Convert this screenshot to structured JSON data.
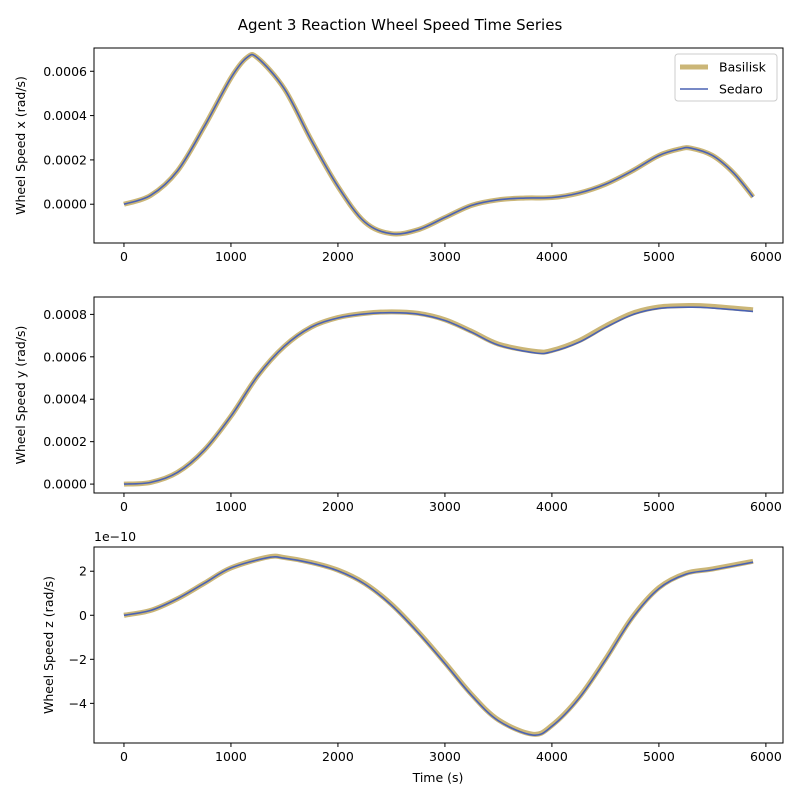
{
  "chart_data": {
    "type": "line",
    "title": "Agent 3 Reaction Wheel Speed Time Series",
    "xlabel": "Time (s)",
    "legend": {
      "placement": "top-right",
      "entries": [
        {
          "name": "Basilisk",
          "color": "#cbb677",
          "style": "thick"
        },
        {
          "name": "Sedaro",
          "color": "#4a62b4",
          "style": "thin"
        }
      ]
    },
    "x_ticks": [
      0,
      1000,
      2000,
      3000,
      4000,
      5000,
      6000
    ],
    "x_tick_labels": [
      "0",
      "1000",
      "2000",
      "3000",
      "4000",
      "5000",
      "6000"
    ],
    "xlim": [
      -280,
      6160
    ],
    "subplots": [
      {
        "ylabel": "Wheel Speed x (rad/s)",
        "ylim": [
          -0.000175,
          0.000705
        ],
        "y_ticks": [
          0,
          0.0002,
          0.0004,
          0.0006
        ],
        "y_tick_labels": [
          "0.0000",
          "0.0002",
          "0.0004",
          "0.0006"
        ],
        "offset_text": "",
        "series": [
          {
            "name": "Basilisk",
            "x": [
              0,
              250,
              500,
              750,
              1000,
              1150,
              1250,
              1500,
              1750,
              2000,
              2250,
              2500,
              2750,
              3000,
              3250,
              3500,
              3750,
              4000,
              4250,
              4500,
              4750,
              5000,
              5200,
              5300,
              5500,
              5700,
              5880
            ],
            "y": [
              0.0,
              4e-05,
              0.00015,
              0.00035,
              0.00057,
              0.000662,
              0.00066,
              0.00052,
              0.00029,
              8e-05,
              -8e-05,
              -0.000133,
              -0.000115,
              -6e-05,
              -5e-06,
              2e-05,
              2.8e-05,
              3e-05,
              5e-05,
              9e-05,
              0.00015,
              0.00022,
              0.00025,
              0.000253,
              0.00022,
              0.00014,
              3.3e-05
            ]
          },
          {
            "name": "Sedaro",
            "x": [
              0,
              250,
              500,
              750,
              1000,
              1150,
              1250,
              1500,
              1750,
              2000,
              2250,
              2500,
              2750,
              3000,
              3250,
              3500,
              3750,
              4000,
              4250,
              4500,
              4750,
              5000,
              5200,
              5300,
              5500,
              5700,
              5880
            ],
            "y": [
              0.0,
              4e-05,
              0.00015,
              0.00035,
              0.00057,
              0.000662,
              0.00066,
              0.00052,
              0.00029,
              8e-05,
              -8e-05,
              -0.000133,
              -0.000115,
              -6e-05,
              -5e-06,
              2e-05,
              2.8e-05,
              3e-05,
              5e-05,
              9e-05,
              0.00015,
              0.00022,
              0.00025,
              0.000253,
              0.00022,
              0.00014,
              3.3e-05
            ]
          }
        ]
      },
      {
        "ylabel": "Wheel Speed y (rad/s)",
        "ylim": [
          -4.2e-05,
          0.000882
        ],
        "y_ticks": [
          0,
          0.0002,
          0.0004,
          0.0006,
          0.0008
        ],
        "y_tick_labels": [
          "0.0000",
          "0.0002",
          "0.0004",
          "0.0006",
          "0.0008"
        ],
        "offset_text": "",
        "series": [
          {
            "name": "Basilisk",
            "x": [
              0,
              250,
              500,
              750,
              1000,
              1250,
              1500,
              1750,
              2000,
              2250,
              2500,
              2750,
              3000,
              3250,
              3500,
              3850,
              4000,
              4250,
              4500,
              4750,
              5000,
              5300,
              5500,
              5880
            ],
            "y": [
              0.0,
              8e-06,
              5.5e-05,
              0.00016,
              0.00032,
              0.00051,
              0.00065,
              0.00074,
              0.000785,
              0.000805,
              0.000812,
              0.000805,
              0.000775,
              0.00072,
              0.00066,
              0.000625,
              0.00063,
              0.000675,
              0.000745,
              0.000805,
              0.000835,
              0.000842,
              0.000838,
              0.000822
            ]
          },
          {
            "name": "Sedaro",
            "x": [
              0,
              250,
              500,
              750,
              1000,
              1250,
              1500,
              1750,
              2000,
              2250,
              2500,
              2750,
              3000,
              3250,
              3500,
              3850,
              4000,
              4250,
              4500,
              4750,
              5000,
              5300,
              5500,
              5880
            ],
            "y": [
              0.0,
              8e-06,
              5.5e-05,
              0.00016,
              0.00032,
              0.00051,
              0.00065,
              0.00074,
              0.000783,
              0.000802,
              0.000808,
              0.000801,
              0.000771,
              0.000716,
              0.000655,
              0.000618,
              0.000624,
              0.000668,
              0.000738,
              0.000798,
              0.000828,
              0.000834,
              0.00083,
              0.000814
            ]
          }
        ]
      },
      {
        "ylabel": "Wheel Speed z (rad/s)",
        "ylim": [
          -5.8e-10,
          3.1e-10
        ],
        "y_ticks": [
          -4e-10,
          -2e-10,
          0,
          2e-10
        ],
        "y_tick_labels": [
          "−4",
          "−2",
          "0",
          "2"
        ],
        "offset_text": "1e−10",
        "series": [
          {
            "name": "Basilisk",
            "x": [
              0,
              250,
              500,
              750,
              1000,
              1350,
              1500,
              1750,
              2000,
              2250,
              2500,
              2750,
              3000,
              3250,
              3500,
              3820,
              4000,
              4250,
              4500,
              4750,
              5000,
              5250,
              5500,
              5880
            ],
            "y": [
              0.0,
              2.2e-11,
              7.5e-11,
              1.45e-10,
              2.15e-10,
              2.65e-10,
              2.62e-10,
              2.4e-10,
              2.05e-10,
              1.45e-10,
              5e-11,
              -7.5e-11,
              -2.15e-10,
              -3.6e-10,
              -4.75e-10,
              -5.4e-10,
              -5e-10,
              -3.75e-10,
              -2e-10,
              -1e-11,
              1.25e-10,
              1.9e-10,
              2.1e-10,
              2.45e-10
            ]
          },
          {
            "name": "Sedaro",
            "x": [
              0,
              250,
              500,
              750,
              1000,
              1350,
              1500,
              1750,
              2000,
              2250,
              2500,
              2750,
              3000,
              3250,
              3500,
              3820,
              4000,
              4250,
              4500,
              4750,
              5000,
              5250,
              5500,
              5880
            ],
            "y": [
              0.0,
              2.2e-11,
              7.5e-11,
              1.45e-10,
              2.15e-10,
              2.62e-10,
              2.59e-10,
              2.37e-10,
              2.02e-10,
              1.42e-10,
              4.6e-11,
              -7.9e-11,
              -2.19e-10,
              -3.64e-10,
              -4.79e-10,
              -5.44e-10,
              -5.04e-10,
              -3.79e-10,
              -2.04e-10,
              -1.4e-11,
              1.21e-10,
              1.86e-10,
              2.06e-10,
              2.41e-10
            ]
          }
        ]
      }
    ]
  }
}
